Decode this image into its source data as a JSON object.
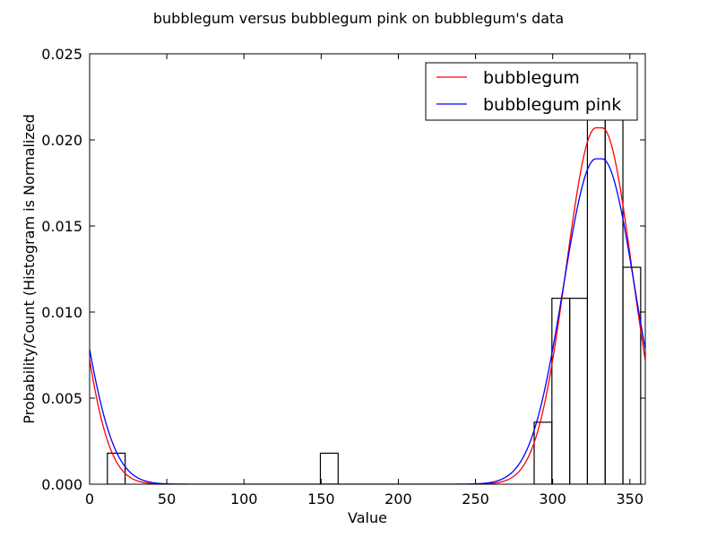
{
  "chart_data": {
    "type": "bar",
    "title": "bubblegum versus bubblegum pink on bubblegum's data",
    "xlabel": "Value",
    "ylabel": "Probability/Count (Histogram is Normalized",
    "xlim": [
      0,
      360
    ],
    "ylim": [
      0,
      0.025
    ],
    "xticks": [
      0,
      50,
      100,
      150,
      200,
      250,
      300,
      350
    ],
    "yticks": [
      "0.000",
      "0.005",
      "0.010",
      "0.015",
      "0.020",
      "0.025"
    ],
    "grid": false,
    "legend_position": "top-right",
    "histogram": {
      "edges": [
        11.5,
        23,
        149.5,
        161,
        288,
        299.5,
        311,
        322.5,
        334,
        345.5,
        357
      ],
      "counts": [
        0.0018,
        0,
        0.0018,
        0,
        0.0036,
        0.0108,
        0.0108,
        0.0235,
        0.0235,
        0.0126
      ]
    },
    "series": [
      {
        "name": "bubblegum",
        "color": "#ff0000",
        "curve": "circular-gaussian",
        "center": 330,
        "sigma": 19.3,
        "peak": 0.0207,
        "flat_top_width": 4
      },
      {
        "name": "bubblegum pink",
        "color": "#0000ff",
        "curve": "circular-gaussian",
        "center": 330,
        "sigma": 21.1,
        "peak": 0.0189,
        "flat_top_width": 4
      }
    ]
  }
}
